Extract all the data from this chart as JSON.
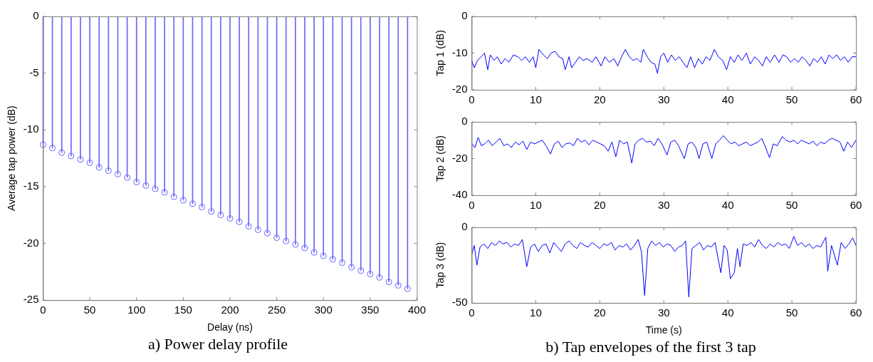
{
  "chart_data": [
    {
      "type": "lollipop",
      "xlabel": "Delay (ns)",
      "ylabel": "Average tap power (dB)",
      "xlim": [
        0,
        400
      ],
      "xticks": [
        0,
        50,
        100,
        150,
        200,
        250,
        300,
        350,
        400
      ],
      "ylim": [
        -25,
        0
      ],
      "yticks": [
        -25,
        -20,
        -15,
        -10,
        -5,
        0
      ],
      "marker": "circle",
      "annotations": [
        "a) Power delay profile"
      ],
      "x": [
        0,
        10,
        20,
        30,
        40,
        50,
        60,
        70,
        80,
        90,
        100,
        110,
        120,
        130,
        140,
        150,
        160,
        170,
        180,
        190,
        200,
        210,
        220,
        230,
        240,
        250,
        260,
        270,
        280,
        290,
        300,
        310,
        320,
        330,
        340,
        350,
        360,
        370,
        380,
        390
      ],
      "series": [
        {
          "color": "#6666ff",
          "values": [
            -11.3,
            -11.6,
            -12.0,
            -12.3,
            -12.6,
            -12.9,
            -13.3,
            -13.6,
            -13.9,
            -14.2,
            -14.6,
            -14.9,
            -15.2,
            -15.5,
            -15.9,
            -16.2,
            -16.5,
            -16.8,
            -17.2,
            -17.5,
            -17.8,
            -18.1,
            -18.5,
            -18.8,
            -19.1,
            -19.5,
            -19.8,
            -20.1,
            -20.4,
            -20.8,
            -21.1,
            -21.4,
            -21.7,
            -22.1,
            -22.4,
            -22.7,
            -23.0,
            -23.4,
            -23.7,
            -24.0
          ]
        }
      ]
    },
    {
      "type": "line",
      "ylabel": "Tap 1 (dB)",
      "xlim": [
        0,
        60
      ],
      "xticks": [
        0,
        10,
        20,
        30,
        40,
        50,
        60
      ],
      "ylim": [
        -20,
        0
      ],
      "yticks": [
        -20,
        -10,
        0
      ],
      "x": [
        0,
        0.4,
        0.9,
        1.5,
        2,
        2.5,
        2.9,
        3.5,
        4,
        4.6,
        5.2,
        5.8,
        6.5,
        7.2,
        7.8,
        8.4,
        9,
        9.6,
        10,
        10.5,
        11.2,
        11.8,
        12.4,
        13,
        13.6,
        14.2,
        14.6,
        15.2,
        15.6,
        16.2,
        16.8,
        17.4,
        18,
        18.8,
        19.4,
        20.2,
        20.8,
        21.5,
        22.2,
        22.8,
        23.4,
        24,
        24.6,
        25.2,
        25.8,
        26.4,
        26.8,
        27.4,
        28,
        28.6,
        29,
        29.5,
        30,
        30.6,
        31.2,
        31.8,
        32.4,
        33,
        33.6,
        34.2,
        34.8,
        35.4,
        36,
        36.6,
        37.2,
        37.9,
        38.5,
        39.2,
        39.8,
        40.4,
        41,
        41.6,
        42.2,
        42.9,
        43.5,
        44.2,
        44.8,
        45.4,
        46,
        46.6,
        47.3,
        48,
        48.6,
        49.2,
        49.8,
        50.4,
        51,
        51.6,
        52.2,
        52.8,
        53.4,
        54,
        54.6,
        55.2,
        55.8,
        56.4,
        57,
        57.6,
        58.2,
        58.8,
        59.4,
        60
      ],
      "series": [
        {
          "color": "#0000ff",
          "values": [
            -12,
            -14,
            -12,
            -11,
            -10,
            -14.5,
            -10.5,
            -12,
            -11,
            -13,
            -11.5,
            -12.5,
            -10.5,
            -11,
            -12,
            -11,
            -12.5,
            -11,
            -14,
            -9,
            -10.5,
            -11.5,
            -10,
            -9.5,
            -11,
            -11.5,
            -14.5,
            -11,
            -14,
            -12.5,
            -11,
            -12,
            -11.5,
            -12.5,
            -11,
            -13.5,
            -11,
            -12.5,
            -11.5,
            -13.5,
            -11,
            -9,
            -11,
            -12,
            -11.5,
            -12.5,
            -9,
            -11,
            -12.5,
            -13,
            -15.5,
            -11,
            -10,
            -12.5,
            -10.5,
            -12,
            -11,
            -12.5,
            -14,
            -11,
            -14,
            -11.5,
            -13,
            -11,
            -12,
            -9,
            -11,
            -12,
            -14.5,
            -11,
            -12.5,
            -10.5,
            -12,
            -10,
            -13,
            -11,
            -12,
            -13.5,
            -11,
            -12.5,
            -10.5,
            -12.5,
            -10.5,
            -11,
            -12.5,
            -11.5,
            -12.5,
            -11,
            -12,
            -13.5,
            -11.5,
            -12.5,
            -11,
            -13,
            -10.5,
            -11.5,
            -10.5,
            -12,
            -11,
            -12.5,
            -11,
            -11
          ]
        }
      ]
    },
    {
      "type": "line",
      "ylabel": "Tap 2 (dB)",
      "xlim": [
        0,
        60
      ],
      "xticks": [
        0,
        10,
        20,
        30,
        40,
        50,
        60
      ],
      "ylim": [
        -40,
        0
      ],
      "yticks": [
        -40,
        -20,
        0
      ],
      "x": [
        0,
        0.5,
        1,
        1.5,
        2,
        2.6,
        3.2,
        3.8,
        4.4,
        5,
        5.6,
        6.2,
        6.8,
        7.4,
        8,
        8.6,
        9.2,
        9.8,
        10.4,
        11,
        11.6,
        12.3,
        12.9,
        13.5,
        14.1,
        14.7,
        15.3,
        15.9,
        16.5,
        17.1,
        17.7,
        18.3,
        18.9,
        19.5,
        20.1,
        20.7,
        21.3,
        21.9,
        22.5,
        23.1,
        23.7,
        24.3,
        25,
        25.5,
        26.1,
        26.7,
        27.3,
        27.9,
        28.5,
        29.1,
        29.7,
        30.5,
        31.1,
        31.7,
        32.3,
        33.2,
        33.8,
        34.4,
        35,
        35.5,
        36.1,
        36.7,
        37.5,
        38.1,
        38.7,
        39.3,
        39.9,
        40.5,
        41.1,
        41.7,
        42.3,
        42.9,
        43.5,
        44.1,
        44.7,
        45.3,
        45.9,
        46.5,
        47.1,
        47.7,
        48.5,
        49.1,
        49.7,
        50.3,
        50.9,
        51.5,
        52.1,
        52.7,
        53.3,
        53.9,
        54.5,
        55.1,
        55.7,
        56.3,
        56.9,
        57.5,
        58.1,
        58.7,
        59.3,
        60
      ],
      "series": [
        {
          "color": "#0000ff",
          "values": [
            -12,
            -14,
            -8.5,
            -13,
            -12,
            -10,
            -13,
            -11,
            -9,
            -13,
            -12,
            -14,
            -11,
            -12.5,
            -10.5,
            -15,
            -11,
            -12,
            -11,
            -10,
            -13,
            -17.5,
            -12,
            -10.5,
            -14,
            -12,
            -11.5,
            -13,
            -9,
            -11,
            -10,
            -12.5,
            -10,
            -11,
            -12,
            -13,
            -16,
            -11,
            -19,
            -10,
            -12,
            -11,
            -22.5,
            -12,
            -10,
            -9,
            -11,
            -10.5,
            -13,
            -9,
            -12,
            -18,
            -11,
            -10,
            -13,
            -20,
            -12,
            -11,
            -14,
            -20,
            -12,
            -11,
            -20,
            -12,
            -10,
            -7.5,
            -10,
            -12,
            -11,
            -13,
            -12,
            -11,
            -13,
            -12,
            -11,
            -9,
            -14,
            -19.5,
            -12,
            -13,
            -8,
            -10,
            -11,
            -10,
            -12,
            -10,
            -11,
            -12,
            -10.5,
            -13,
            -11,
            -12,
            -10,
            -9,
            -10,
            -11,
            -16,
            -11,
            -14,
            -10
          ]
        }
      ]
    },
    {
      "type": "line",
      "ylabel": "Tap 3 (dB)",
      "xlabel": "Time (s)",
      "xlim": [
        0,
        60
      ],
      "xticks": [
        0,
        10,
        20,
        30,
        40,
        50,
        60
      ],
      "ylim": [
        -50,
        0
      ],
      "yticks": [
        -50,
        0
      ],
      "annotations": [
        "b) Tap envelopes of the first 3 tap"
      ],
      "x": [
        0,
        0.4,
        0.8,
        1.3,
        1.9,
        2.5,
        3.1,
        3.7,
        4.3,
        4.9,
        5.5,
        6.1,
        6.7,
        7.3,
        7.9,
        8.6,
        9.2,
        9.8,
        10.4,
        11,
        11.6,
        12.2,
        12.8,
        13.4,
        14,
        14.6,
        15.2,
        15.8,
        16.4,
        17,
        17.6,
        18.2,
        18.8,
        19.4,
        20,
        20.6,
        21.2,
        21.8,
        22.4,
        23,
        23.6,
        24.2,
        24.8,
        25.4,
        26,
        26.5,
        27,
        27.5,
        28.1,
        28.7,
        29.3,
        29.9,
        30.5,
        31.1,
        31.7,
        32.3,
        32.9,
        33.4,
        33.9,
        34.4,
        35,
        35.6,
        36.2,
        36.8,
        37.4,
        38,
        38.9,
        39.4,
        39.9,
        40.4,
        41,
        41.5,
        41.9,
        42.4,
        43,
        43.6,
        44.2,
        44.8,
        45.4,
        46,
        46.6,
        47.2,
        47.8,
        48.4,
        49,
        49.6,
        50.3,
        50.9,
        51.5,
        52.1,
        52.7,
        53.3,
        53.9,
        54.5,
        55.3,
        55.6,
        56.2,
        57.1,
        57.7,
        58.3,
        58.9,
        59.5,
        60
      ],
      "series": [
        {
          "color": "#0000ff",
          "values": [
            -18,
            -12,
            -25,
            -13,
            -11,
            -14,
            -10,
            -12,
            -9,
            -11,
            -10,
            -13,
            -11,
            -12,
            -8,
            -26,
            -13,
            -11,
            -16,
            -12,
            -11,
            -17,
            -10,
            -13,
            -16,
            -11,
            -9,
            -12,
            -14,
            -10,
            -12,
            -13,
            -10,
            -12,
            -14,
            -11,
            -12,
            -10,
            -15,
            -12,
            -13,
            -11,
            -15,
            -12,
            -8,
            -16,
            -45,
            -14,
            -9,
            -12,
            -10,
            -13,
            -11,
            -12,
            -16,
            -13,
            -12,
            -9,
            -46,
            -14,
            -12,
            -10,
            -15,
            -12,
            -13,
            -10,
            -30,
            -12,
            -15,
            -34,
            -30,
            -14,
            -26,
            -11,
            -12,
            -10,
            -13,
            -8,
            -12,
            -14,
            -11,
            -13,
            -10,
            -12,
            -11,
            -14,
            -6,
            -12,
            -10,
            -13,
            -11,
            -14,
            -12,
            -13,
            -6.5,
            -29,
            -12,
            -25,
            -10,
            -14,
            -11,
            -7,
            -12
          ]
        }
      ]
    }
  ]
}
